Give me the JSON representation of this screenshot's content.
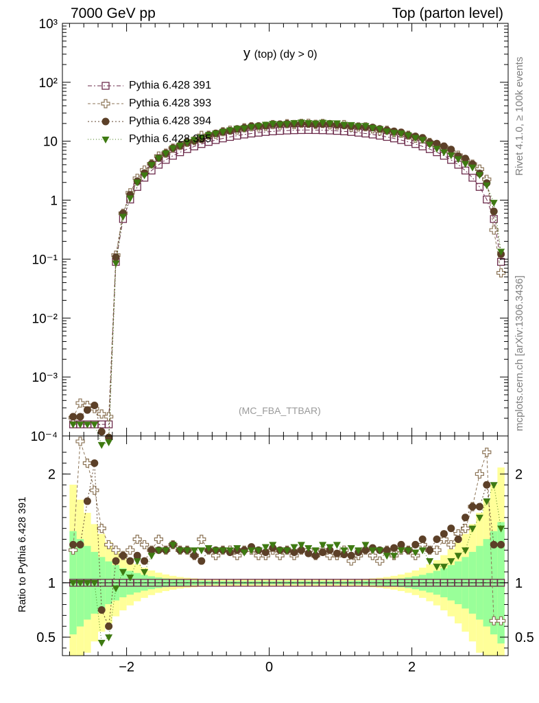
{
  "header": {
    "left": "7000 GeV pp",
    "right": "Top (parton level)"
  },
  "title": {
    "main": "y",
    "sub": "(top) (dy > 0)"
  },
  "side_labels": {
    "rivet": "Rivet 4.1.0, ≥ 100k events",
    "mcplots": "mcplots.cern.ch [arXiv:1306.3436]"
  },
  "analysis_label": "(MC_FBA_TTBAR)",
  "ratio_ylabel": "Ratio to Pythia 6.428 391",
  "legend": [
    {
      "name": "Pythia 6.428 391",
      "color": "#6b2a4a",
      "marker": "open-square"
    },
    {
      "name": "Pythia 6.428 393",
      "color": "#8b7355",
      "marker": "open-cross"
    },
    {
      "name": "Pythia 6.428 394",
      "color": "#5c4028",
      "marker": "filled-circle"
    },
    {
      "name": "Pythia 6.428 395",
      "color": "#3e7a12",
      "marker": "filled-triangle-down"
    }
  ],
  "colors": {
    "band_outer": "#ffff99",
    "band_inner": "#99ff99",
    "label_grey": "#7f7f7f"
  },
  "chart_data": {
    "type": "line",
    "xlabel": "",
    "xlim": [
      -2.9,
      3.35
    ],
    "xticks": [
      -2,
      0,
      2
    ],
    "xtick_labels": [
      "−2",
      "0",
      "2"
    ],
    "main": {
      "yscale": "log",
      "ylim": [
        0.0001,
        1000
      ],
      "ytick_labels": [
        "10⁻⁴",
        "10⁻³",
        "10⁻²",
        "10⁻¹",
        "1",
        "10",
        "10²",
        "10³"
      ]
    },
    "ratio": {
      "ylim": [
        0.33,
        2.35
      ],
      "yticks": [
        0.5,
        1,
        2
      ],
      "ytick_labels": [
        "0.5",
        "1",
        "2"
      ]
    },
    "shape_params": {
      "peak_x": 0.55,
      "half_width": 2.75,
      "power": 1.55,
      "peak_values": [
        15.5,
        19.5,
        21.0,
        21.5
      ]
    },
    "x_points": [
      -2.75,
      -2.65,
      -2.55,
      -2.45,
      -2.35,
      -2.25,
      -2.15,
      -2.05,
      -1.95,
      -1.85,
      -1.75,
      -1.65,
      -1.55,
      -1.45,
      -1.35,
      -1.25,
      -1.15,
      -1.05,
      -0.95,
      -0.85,
      -0.75,
      -0.65,
      -0.55,
      -0.45,
      -0.35,
      -0.25,
      -0.15,
      -0.05,
      0.05,
      0.15,
      0.25,
      0.35,
      0.45,
      0.55,
      0.65,
      0.75,
      0.85,
      0.95,
      1.05,
      1.15,
      1.25,
      1.35,
      1.45,
      1.55,
      1.65,
      1.75,
      1.85,
      1.95,
      2.05,
      2.15,
      2.25,
      2.35,
      2.45,
      2.55,
      2.65,
      2.75,
      2.85,
      2.95,
      3.05,
      3.15,
      3.25
    ],
    "series": [
      {
        "name": "Pythia 6.428 391",
        "ratio": [
          1.0,
          1.0,
          1.0,
          1.0,
          1.0,
          1.0,
          1.0,
          1.0,
          1.0,
          1.0,
          1.0,
          1.0,
          1.0,
          1.0,
          1.0,
          1.0,
          1.0,
          1.0,
          1.0,
          1.0,
          1.0,
          1.0,
          1.0,
          1.0,
          1.0,
          1.0,
          1.0,
          1.0,
          1.0,
          1.0,
          1.0,
          1.0,
          1.0,
          1.0,
          1.0,
          1.0,
          1.0,
          1.0,
          1.0,
          1.0,
          1.0,
          1.0,
          1.0,
          1.0,
          1.0,
          1.0,
          1.0,
          1.0,
          1.0,
          1.0,
          1.0,
          1.0,
          1.0,
          1.0,
          1.0,
          1.0,
          1.0,
          1.0,
          1.0,
          1.0,
          1.0
        ]
      },
      {
        "name": "Pythia 6.428 393",
        "ratio": [
          1.3,
          2.3,
          2.1,
          1.85,
          1.5,
          1.35,
          1.3,
          1.25,
          1.3,
          1.4,
          1.35,
          1.3,
          1.4,
          1.3,
          1.35,
          1.3,
          1.3,
          1.25,
          1.4,
          1.3,
          1.25,
          1.3,
          1.3,
          1.25,
          1.3,
          1.3,
          1.25,
          1.25,
          1.3,
          1.25,
          1.3,
          1.25,
          1.3,
          1.3,
          1.25,
          1.3,
          1.25,
          1.25,
          1.3,
          1.2,
          1.25,
          1.3,
          1.25,
          1.2,
          1.3,
          1.25,
          1.3,
          1.3,
          1.25,
          1.35,
          1.3,
          1.3,
          1.4,
          1.35,
          1.45,
          1.5,
          1.7,
          2.0,
          2.2,
          0.65,
          0.65
        ]
      },
      {
        "name": "Pythia 6.428 394",
        "ratio": [
          1.35,
          1.35,
          1.75,
          2.1,
          0.75,
          0.6,
          1.2,
          1.25,
          1.2,
          1.25,
          1.2,
          1.3,
          1.3,
          1.3,
          1.35,
          1.3,
          1.3,
          1.25,
          1.2,
          1.3,
          1.3,
          1.3,
          1.28,
          1.3,
          1.3,
          1.33,
          1.3,
          1.28,
          1.32,
          1.3,
          1.3,
          1.28,
          1.3,
          1.27,
          1.25,
          1.28,
          1.3,
          1.27,
          1.26,
          1.25,
          1.28,
          1.3,
          1.32,
          1.3,
          1.3,
          1.32,
          1.35,
          1.3,
          1.35,
          1.4,
          1.3,
          1.4,
          1.45,
          1.5,
          1.4,
          1.6,
          1.7,
          1.7,
          1.9,
          1.35,
          1.35
        ]
      },
      {
        "name": "Pythia 6.428 395",
        "ratio": [
          1.0,
          1.0,
          1.0,
          1.0,
          0.45,
          0.5,
          0.95,
          1.1,
          1.05,
          1.2,
          1.1,
          1.25,
          1.3,
          1.3,
          1.35,
          1.3,
          1.3,
          1.3,
          1.3,
          1.32,
          1.3,
          1.3,
          1.3,
          1.32,
          1.28,
          1.3,
          1.3,
          1.33,
          1.35,
          1.3,
          1.3,
          1.33,
          1.35,
          1.32,
          1.3,
          1.35,
          1.33,
          1.35,
          1.3,
          1.32,
          1.3,
          1.35,
          1.3,
          1.3,
          1.25,
          1.25,
          1.3,
          1.3,
          1.28,
          1.3,
          1.2,
          1.15,
          1.15,
          1.2,
          1.25,
          1.3,
          1.5,
          1.6,
          1.75,
          1.9,
          1.5
        ]
      }
    ]
  }
}
